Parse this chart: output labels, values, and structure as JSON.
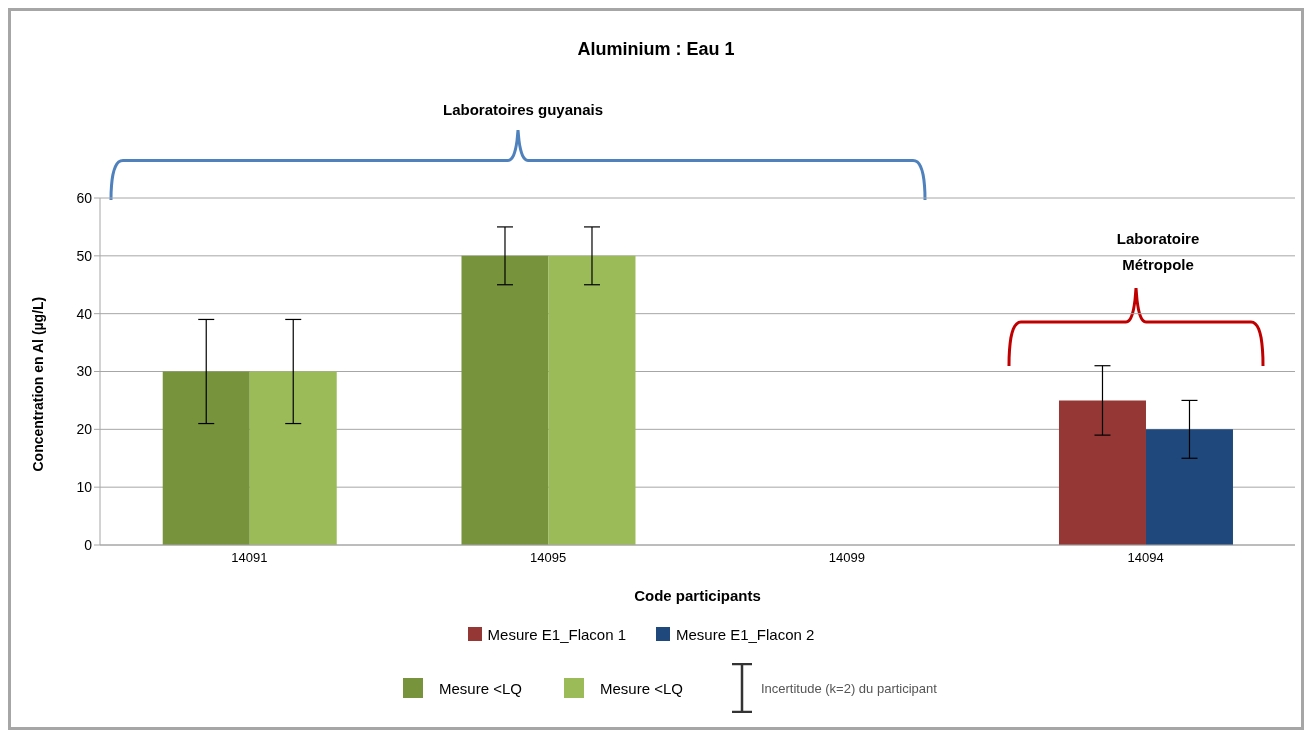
{
  "chart_data": {
    "type": "bar",
    "title": "Aluminium  : Eau 1",
    "xlabel": "Code participants",
    "ylabel": "Concentration en Al (µg/L)",
    "categories": [
      "14091",
      "14095",
      "14099",
      "14094"
    ],
    "series": [
      {
        "name": "Mesure E1_Flacon 1",
        "color": "#953735",
        "values": [
          null,
          null,
          null,
          25
        ],
        "errors": [
          null,
          null,
          null,
          6
        ]
      },
      {
        "name": "Mesure E1_Flacon 2",
        "color": "#1f497d",
        "values": [
          null,
          null,
          null,
          20
        ],
        "errors": [
          null,
          null,
          null,
          5
        ]
      },
      {
        "name": "Mesure <LQ",
        "color": "#77933c",
        "values": [
          30,
          50,
          null,
          null
        ],
        "errors": [
          9,
          5,
          null,
          null
        ]
      },
      {
        "name": "Mesure <LQ",
        "color": "#9bbb59",
        "values": [
          30,
          50,
          null,
          null
        ],
        "errors": [
          9,
          5,
          null,
          null
        ]
      }
    ],
    "ylim": [
      0,
      60
    ],
    "yticks": [
      0,
      10,
      20,
      30,
      40,
      50,
      60
    ],
    "grid": "y",
    "legend": "bottom",
    "annotations": [
      "Laboratoires guyanais",
      "Laboratoire Métropole",
      "Incertitude (k=2) du participant"
    ]
  }
}
